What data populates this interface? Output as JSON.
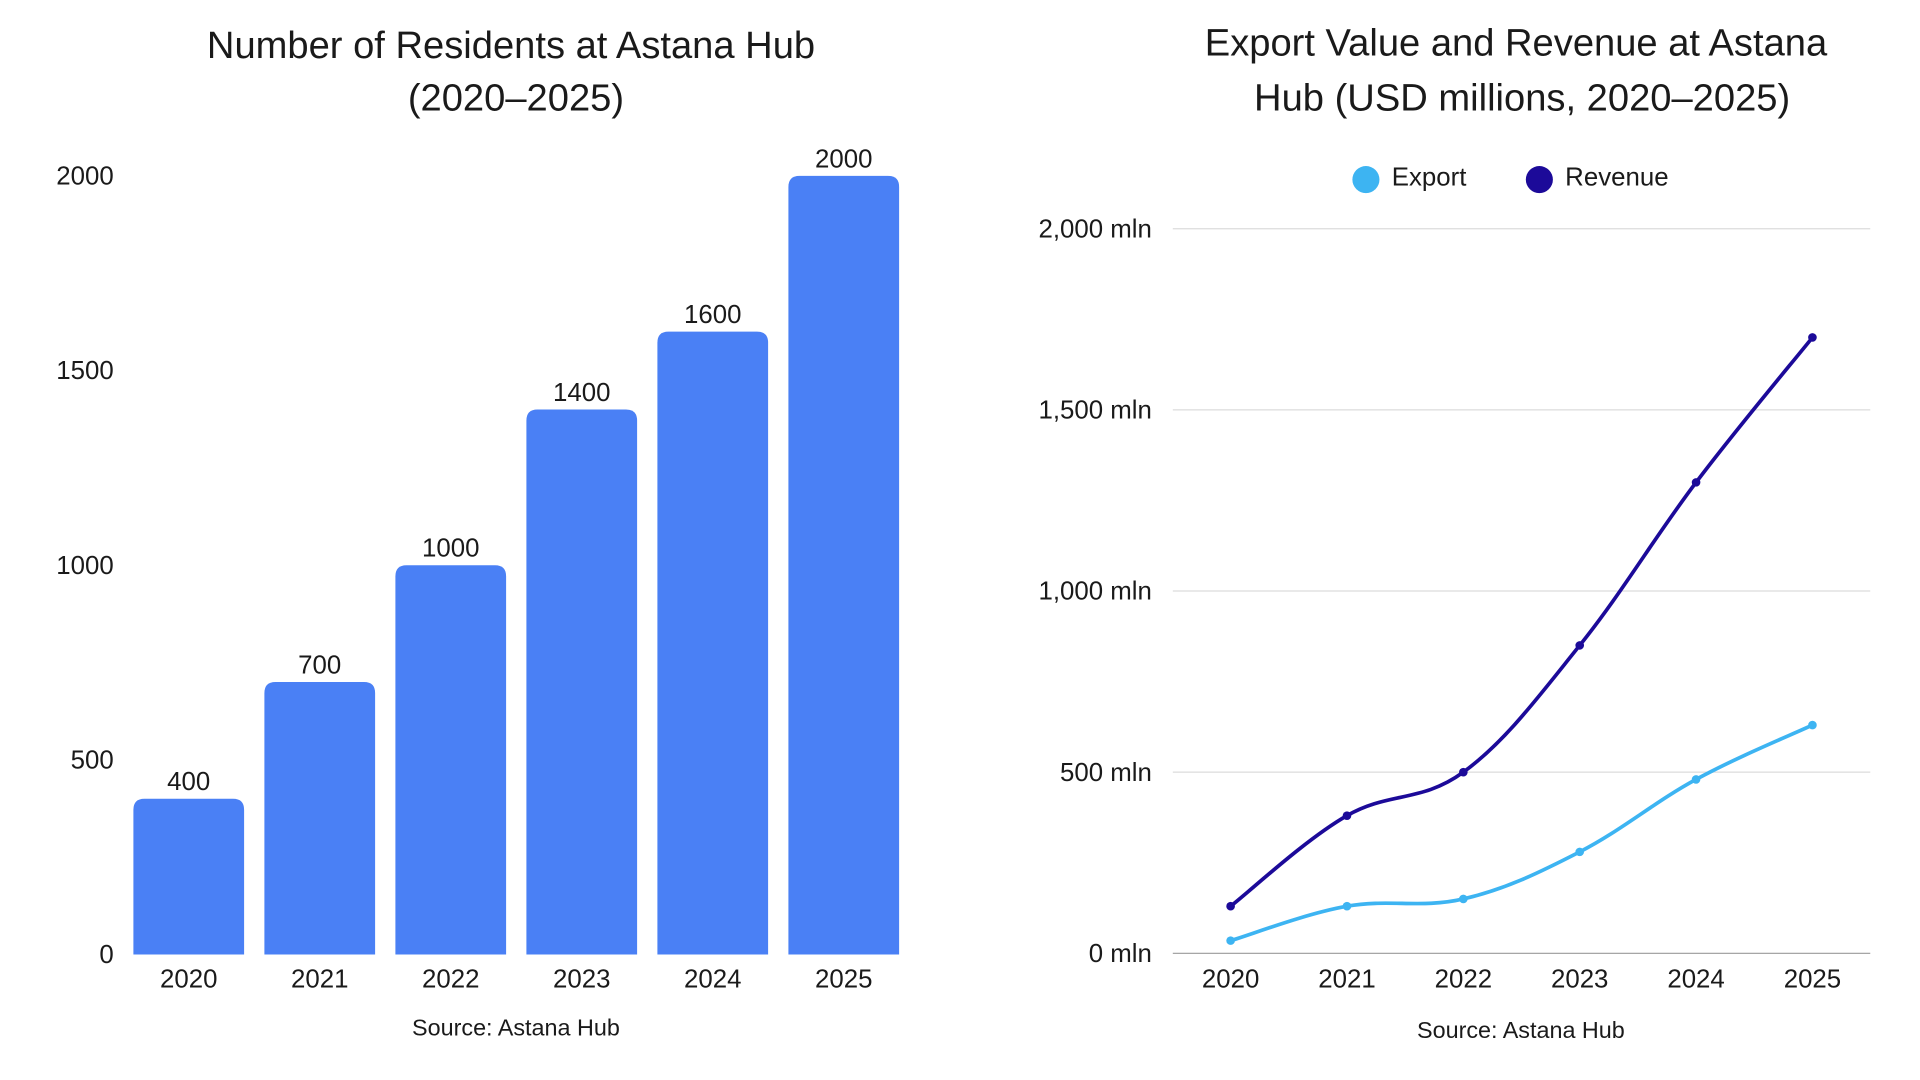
{
  "chart_data": [
    {
      "type": "bar",
      "title_lines": [
        "Number of Residents at Astana Hub",
        "(2020–2025)"
      ],
      "categories": [
        "2020",
        "2021",
        "2022",
        "2023",
        "2024",
        "2025"
      ],
      "values": [
        400,
        700,
        1000,
        1400,
        1600,
        2000
      ],
      "data_labels": [
        "400",
        "700",
        "1000",
        "1400",
        "1600",
        "2000"
      ],
      "yticks": [
        0,
        500,
        1000,
        1500,
        2000
      ],
      "ytick_labels": [
        "0",
        "500",
        "1000",
        "1500",
        "2000"
      ],
      "ylim": [
        0,
        2000
      ],
      "grid": false,
      "source": "Source: Astana Hub",
      "color": "#4a80f5"
    },
    {
      "type": "line",
      "title_lines": [
        "Export Value and Revenue at Astana",
        "Hub (USD millions, 2020–2025)"
      ],
      "categories": [
        "2020",
        "2021",
        "2022",
        "2023",
        "2024",
        "2025"
      ],
      "series": [
        {
          "name": "Export",
          "values": [
            35,
            130,
            150,
            280,
            480,
            630
          ],
          "color": "#3db4f2"
        },
        {
          "name": "Revenue",
          "values": [
            130,
            380,
            500,
            850,
            1300,
            1700
          ],
          "color": "#1c0a99"
        }
      ],
      "yticks": [
        0,
        500,
        1000,
        1500,
        2000
      ],
      "ytick_labels": [
        "0 mln",
        "500 mln",
        "1,000 mln",
        "1,500 mln",
        "2,000 mln"
      ],
      "ylim": [
        0,
        2000
      ],
      "grid": true,
      "legend": "top",
      "smooth": true,
      "source": "Source: Astana Hub"
    }
  ]
}
